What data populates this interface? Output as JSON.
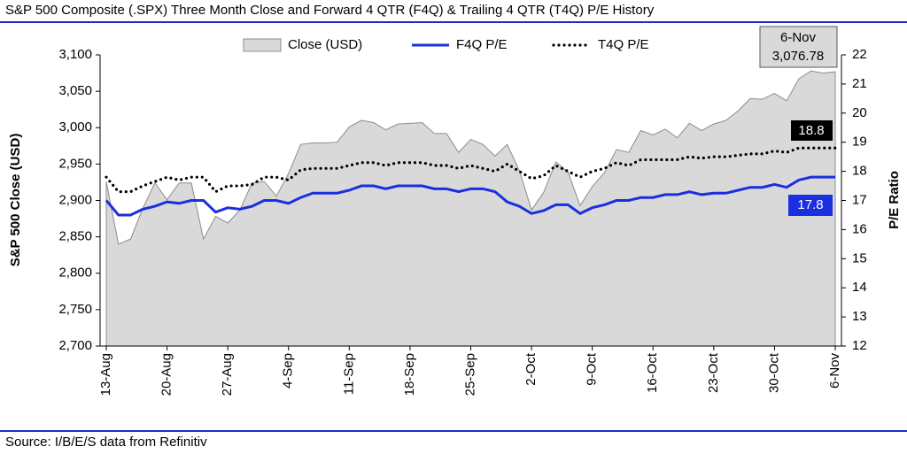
{
  "chart_data": {
    "type": "area-line",
    "title": "S&P 500 Composite (.SPX) Three Month Close and Forward 4 QTR (F4Q) & Trailing 4 QTR (T4Q) P/E History",
    "source": "Source: I/B/E/S data from Refinitiv",
    "ylabel": "S&P 500 Close (USD)",
    "y2label": "P/E Ratio",
    "categories": [
      "13-Aug",
      null,
      null,
      null,
      null,
      "20-Aug",
      null,
      null,
      null,
      null,
      "27-Aug",
      null,
      null,
      null,
      null,
      "4-Sep",
      null,
      null,
      null,
      null,
      "11-Sep",
      null,
      null,
      null,
      null,
      "18-Sep",
      null,
      null,
      null,
      null,
      "25-Sep",
      null,
      null,
      null,
      null,
      "2-Oct",
      null,
      null,
      null,
      null,
      "9-Oct",
      null,
      null,
      null,
      null,
      "16-Oct",
      null,
      null,
      null,
      null,
      "23-Oct",
      null,
      null,
      null,
      null,
      "30-Oct",
      null,
      null,
      null,
      null,
      "6-Nov"
    ],
    "series": [
      {
        "name": "Close (USD)",
        "color": "#d9d9d9",
        "values": [
          2926,
          2840,
          2847,
          2889,
          2924,
          2901,
          2924,
          2924,
          2847,
          2878,
          2869,
          2887,
          2924,
          2926,
          2906,
          2937,
          2977,
          2979,
          2979,
          2980,
          3001,
          3010,
          3007,
          2997,
          3005,
          3006,
          3007,
          2992,
          2992,
          2966,
          2984,
          2977,
          2961,
          2977,
          2941,
          2887,
          2911,
          2953,
          2939,
          2893,
          2919,
          2938,
          2970,
          2966,
          2996,
          2990,
          2998,
          2986,
          3006,
          2996,
          3005,
          3010,
          3023,
          3040,
          3039,
          3047,
          3037,
          3067,
          3078,
          3075,
          3076.78
        ]
      },
      {
        "name": "F4Q P/E",
        "color": "#1a2fe0",
        "axis": "y2",
        "values": [
          17.0,
          16.5,
          16.5,
          16.7,
          16.8,
          16.95,
          16.9,
          17.0,
          17.0,
          16.6,
          16.75,
          16.7,
          16.8,
          17.0,
          17.0,
          16.9,
          17.1,
          17.25,
          17.25,
          17.25,
          17.35,
          17.5,
          17.5,
          17.4,
          17.5,
          17.5,
          17.5,
          17.4,
          17.4,
          17.3,
          17.4,
          17.4,
          17.3,
          16.95,
          16.8,
          16.55,
          16.65,
          16.85,
          16.85,
          16.55,
          16.75,
          16.85,
          17.0,
          17.0,
          17.1,
          17.1,
          17.2,
          17.2,
          17.3,
          17.2,
          17.25,
          17.25,
          17.35,
          17.45,
          17.45,
          17.55,
          17.45,
          17.7,
          17.8,
          17.8,
          17.8
        ]
      },
      {
        "name": "T4Q P/E",
        "color": "#000000",
        "axis": "y2",
        "values": [
          17.8,
          17.3,
          17.3,
          17.5,
          17.65,
          17.8,
          17.7,
          17.8,
          17.8,
          17.3,
          17.5,
          17.5,
          17.55,
          17.8,
          17.8,
          17.7,
          18.05,
          18.1,
          18.1,
          18.1,
          18.2,
          18.3,
          18.3,
          18.2,
          18.3,
          18.3,
          18.3,
          18.2,
          18.2,
          18.1,
          18.2,
          18.1,
          18.0,
          18.25,
          18.0,
          17.75,
          17.85,
          18.2,
          18.0,
          17.8,
          18.0,
          18.1,
          18.3,
          18.2,
          18.4,
          18.4,
          18.4,
          18.4,
          18.5,
          18.45,
          18.5,
          18.5,
          18.55,
          18.6,
          18.6,
          18.7,
          18.65,
          18.8,
          18.8,
          18.8,
          18.8
        ]
      }
    ],
    "annotations": [
      "6-Nov",
      "3,076.78",
      "18.8",
      "17.8"
    ],
    "ylim": [
      2700,
      3100
    ],
    "yticks": [
      {
        "value": 2700,
        "label": "2,700"
      },
      {
        "value": 2750,
        "label": "2,750"
      },
      {
        "value": 2800,
        "label": "2,800"
      },
      {
        "value": 2850,
        "label": "2,850"
      },
      {
        "value": 2900,
        "label": "2,900"
      },
      {
        "value": 2950,
        "label": "2,950"
      },
      {
        "value": 3000,
        "label": "3,000"
      },
      {
        "value": 3050,
        "label": "3,050"
      },
      {
        "value": 3100,
        "label": "3,100"
      }
    ],
    "y2lim": [
      12,
      22
    ],
    "y2ticks": [
      12,
      13,
      14,
      15,
      16,
      17,
      18,
      19,
      20,
      21,
      22
    ]
  }
}
